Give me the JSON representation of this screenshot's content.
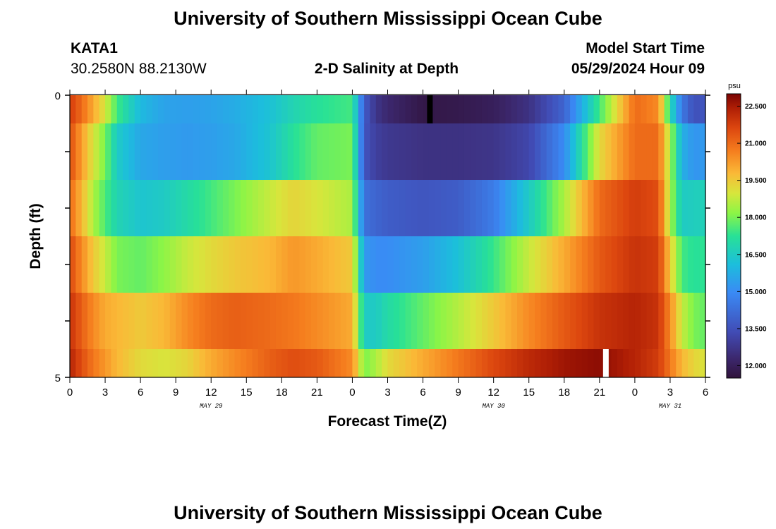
{
  "title": "University of Southern Mississippi Ocean Cube",
  "footer_title": "University of Southern Mississippi Ocean Cube",
  "station": {
    "name": "KATA1",
    "coords": "30.2580N  88.2130W"
  },
  "model": {
    "label": "Model Start Time",
    "time": "05/29/2024 Hour 09"
  },
  "chart_data": {
    "type": "heatmap",
    "title": "2-D Salinity at Depth",
    "xlabel": "Forecast Time(Z)",
    "ylabel": "Depth (ft)",
    "y_tick_labels": [
      "0",
      "5"
    ],
    "ylim": [
      0,
      5
    ],
    "x_hours_span": [
      0,
      54
    ],
    "x_tick_hours": [
      0,
      3,
      6,
      9,
      12,
      15,
      18,
      21,
      24,
      27,
      30,
      33,
      36,
      39,
      42,
      45,
      48,
      51,
      54
    ],
    "x_tick_labels": [
      "0",
      "3",
      "6",
      "9",
      "12",
      "15",
      "18",
      "21",
      "0",
      "3",
      "6",
      "9",
      "12",
      "15",
      "18",
      "21",
      "0",
      "3",
      "6"
    ],
    "date_labels": [
      {
        "text": "MAY 29",
        "hour": 12
      },
      {
        "text": "MAY 30",
        "hour": 36
      },
      {
        "text": "MAY 31",
        "hour": 51
      }
    ],
    "colorbar": {
      "unit": "psu",
      "min": 11.5,
      "max": 23.0,
      "ticks": [
        "12.000",
        "13.500",
        "15.000",
        "16.500",
        "18.000",
        "19.500",
        "21.000",
        "22.500"
      ]
    },
    "layer_depths": [
      "0-0.5",
      "0.5-1.5",
      "1.5-2.5",
      "2.5-3.5",
      "3.5-4.5",
      "4.5-5"
    ],
    "time_hours": [
      0,
      1,
      2,
      3,
      4,
      6,
      8,
      10,
      12,
      14,
      17,
      19,
      21,
      24,
      25,
      26,
      27,
      30,
      33,
      36,
      39,
      42,
      45,
      48,
      50,
      51,
      52,
      53,
      54
    ],
    "salinity": [
      [
        21.8,
        21.0,
        20.0,
        19.0,
        17.5,
        16.0,
        15.5,
        15.4,
        15.5,
        15.7,
        16.2,
        16.8,
        17.2,
        17.5,
        13.8,
        12.7,
        12.3,
        11.7,
        11.8,
        12.0,
        12.6,
        14.0,
        17.5,
        21.0,
        20.5,
        17.0,
        14.5,
        13.5,
        13.6
      ],
      [
        21.5,
        20.2,
        19.0,
        18.0,
        16.5,
        15.6,
        15.4,
        15.3,
        15.4,
        15.6,
        16.3,
        17.2,
        17.8,
        18.0,
        13.6,
        13.0,
        12.8,
        12.6,
        12.6,
        12.7,
        13.2,
        15.0,
        19.2,
        21.0,
        21.0,
        18.5,
        15.8,
        15.2,
        15.3
      ],
      [
        21.0,
        19.8,
        18.5,
        17.6,
        16.8,
        16.3,
        16.5,
        17.0,
        17.5,
        18.0,
        18.8,
        19.3,
        19.0,
        18.5,
        14.3,
        14.0,
        13.8,
        13.6,
        13.8,
        14.6,
        16.5,
        18.5,
        21.0,
        21.8,
        21.5,
        18.5,
        16.5,
        16.6,
        16.7
      ],
      [
        21.6,
        20.5,
        19.5,
        18.8,
        18.0,
        17.8,
        18.2,
        18.8,
        19.2,
        19.5,
        19.8,
        20.3,
        20.0,
        19.5,
        15.3,
        15.0,
        15.0,
        15.4,
        16.2,
        17.4,
        18.8,
        20.0,
        21.3,
        22.0,
        21.8,
        19.5,
        17.5,
        17.2,
        17.3
      ],
      [
        22.0,
        21.2,
        20.5,
        20.0,
        19.8,
        19.5,
        19.8,
        20.5,
        21.0,
        21.2,
        21.0,
        20.8,
        20.5,
        20.0,
        16.5,
        16.5,
        17.0,
        17.8,
        18.6,
        19.5,
        20.5,
        21.3,
        22.0,
        22.3,
        22.0,
        20.5,
        18.8,
        18.0,
        17.8
      ],
      [
        22.3,
        21.5,
        20.8,
        20.3,
        19.8,
        19.2,
        19.0,
        19.3,
        20.0,
        20.5,
        21.2,
        21.5,
        21.3,
        20.5,
        18.0,
        18.5,
        19.2,
        20.0,
        20.8,
        21.6,
        22.2,
        22.6,
        22.8,
        22.3,
        21.8,
        20.8,
        19.8,
        19.3,
        19.0
      ]
    ]
  }
}
